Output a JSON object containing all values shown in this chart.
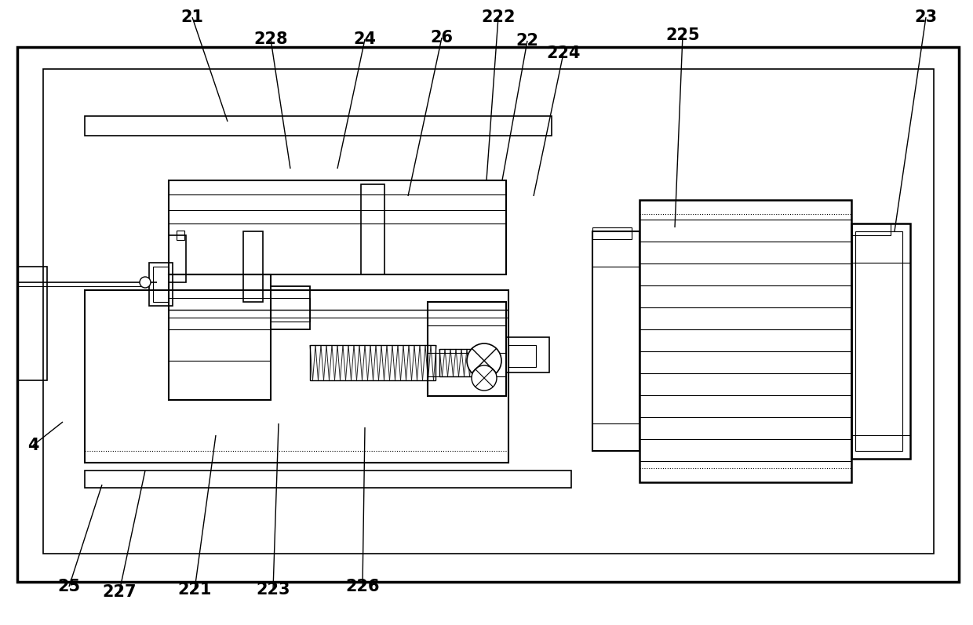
{
  "bg_color": "#ffffff",
  "lc": "#000000",
  "labels": [
    [
      "21",
      245,
      22
    ],
    [
      "228",
      345,
      50
    ],
    [
      "24",
      465,
      50
    ],
    [
      "26",
      563,
      48
    ],
    [
      "222",
      635,
      22
    ],
    [
      "22",
      672,
      52
    ],
    [
      "224",
      718,
      68
    ],
    [
      "225",
      870,
      45
    ],
    [
      "23",
      1180,
      22
    ],
    [
      "4",
      42,
      568
    ],
    [
      "25",
      88,
      748
    ],
    [
      "227",
      152,
      755
    ],
    [
      "221",
      248,
      752
    ],
    [
      "223",
      348,
      752
    ],
    [
      "226",
      462,
      748
    ]
  ],
  "leader_lines": [
    [
      245,
      22,
      290,
      155
    ],
    [
      345,
      50,
      370,
      215
    ],
    [
      465,
      50,
      430,
      215
    ],
    [
      563,
      48,
      520,
      250
    ],
    [
      635,
      22,
      620,
      230
    ],
    [
      672,
      52,
      640,
      230
    ],
    [
      718,
      68,
      680,
      250
    ],
    [
      870,
      45,
      860,
      290
    ],
    [
      1180,
      22,
      1140,
      295
    ],
    [
      42,
      568,
      80,
      538
    ],
    [
      88,
      748,
      130,
      618
    ],
    [
      152,
      755,
      185,
      600
    ],
    [
      248,
      752,
      275,
      555
    ],
    [
      348,
      752,
      355,
      540
    ],
    [
      462,
      748,
      465,
      545
    ]
  ]
}
